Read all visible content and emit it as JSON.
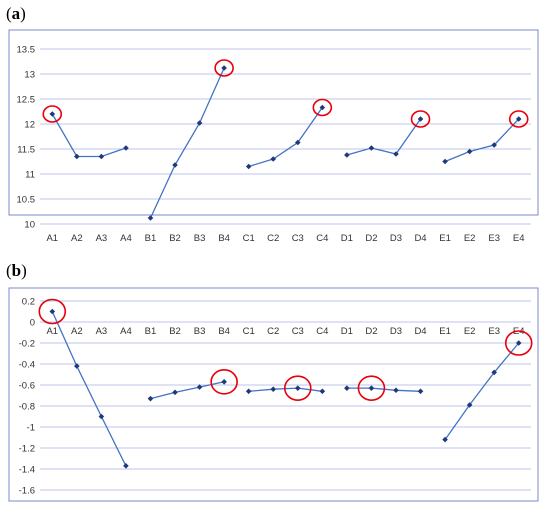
{
  "chart_data": [
    {
      "panel": "(a)",
      "panel_letter": "a",
      "type": "line",
      "categories": [
        "A1",
        "A2",
        "A3",
        "A4",
        "B1",
        "B2",
        "B3",
        "B4",
        "C1",
        "C2",
        "C3",
        "C4",
        "D1",
        "D2",
        "D3",
        "D4",
        "E1",
        "E2",
        "E3",
        "E4"
      ],
      "groups": [
        {
          "name": "A",
          "indices": [
            0,
            1,
            2,
            3
          ]
        },
        {
          "name": "B",
          "indices": [
            4,
            5,
            6,
            7
          ]
        },
        {
          "name": "C",
          "indices": [
            8,
            9,
            10,
            11
          ]
        },
        {
          "name": "D",
          "indices": [
            12,
            13,
            14,
            15
          ]
        },
        {
          "name": "E",
          "indices": [
            16,
            17,
            18,
            19
          ]
        }
      ],
      "values": [
        12.2,
        11.35,
        11.35,
        11.52,
        10.12,
        11.18,
        12.02,
        13.12,
        11.15,
        11.3,
        11.63,
        12.33,
        11.38,
        11.52,
        11.4,
        12.1,
        11.25,
        11.45,
        11.58,
        12.1
      ],
      "highlighted": [
        "A1",
        "B4",
        "C4",
        "D4",
        "E4"
      ],
      "ylim": [
        10,
        13.5
      ],
      "yticks": [
        "10",
        "10.5",
        "11",
        "11.5",
        "12",
        "12.5",
        "13",
        "13.5"
      ],
      "grid": true,
      "title": "",
      "xlabel": "",
      "ylabel": ""
    },
    {
      "panel": "(b)",
      "panel_letter": "b",
      "type": "line",
      "categories": [
        "A1",
        "A2",
        "A3",
        "A4",
        "B1",
        "B2",
        "B3",
        "B4",
        "C1",
        "C2",
        "C3",
        "C4",
        "D1",
        "D2",
        "D3",
        "D4",
        "E1",
        "E2",
        "E3",
        "E4"
      ],
      "groups": [
        {
          "name": "A",
          "indices": [
            0,
            1,
            2,
            3
          ]
        },
        {
          "name": "B",
          "indices": [
            4,
            5,
            6,
            7
          ]
        },
        {
          "name": "C",
          "indices": [
            8,
            9,
            10,
            11
          ]
        },
        {
          "name": "D",
          "indices": [
            12,
            13,
            14,
            15
          ]
        },
        {
          "name": "E",
          "indices": [
            16,
            17,
            18,
            19
          ]
        }
      ],
      "values": [
        0.1,
        -0.42,
        -0.9,
        -1.37,
        -0.73,
        -0.67,
        -0.62,
        -0.57,
        -0.66,
        -0.64,
        -0.63,
        -0.66,
        -0.63,
        -0.63,
        -0.65,
        -0.66,
        -1.12,
        -0.79,
        -0.48,
        -0.2
      ],
      "highlighted": [
        "A1",
        "B4",
        "C3",
        "D2",
        "E4"
      ],
      "ylim": [
        -1.6,
        0.2
      ],
      "yticks": [
        "0.2",
        "0",
        "-0.2",
        "-0.4",
        "-0.6",
        "-0.8",
        "-1",
        "-1.2",
        "-1.4",
        "-1.6"
      ],
      "grid": true,
      "title": "",
      "xlabel": "",
      "ylabel": ""
    }
  ],
  "colors": {
    "line": "#4472c4",
    "marker": "#1f3a7a",
    "grid": "#a9b3e0",
    "frame": "#7b88c8",
    "highlight": "#e8000b",
    "tick_text": "#333333"
  }
}
